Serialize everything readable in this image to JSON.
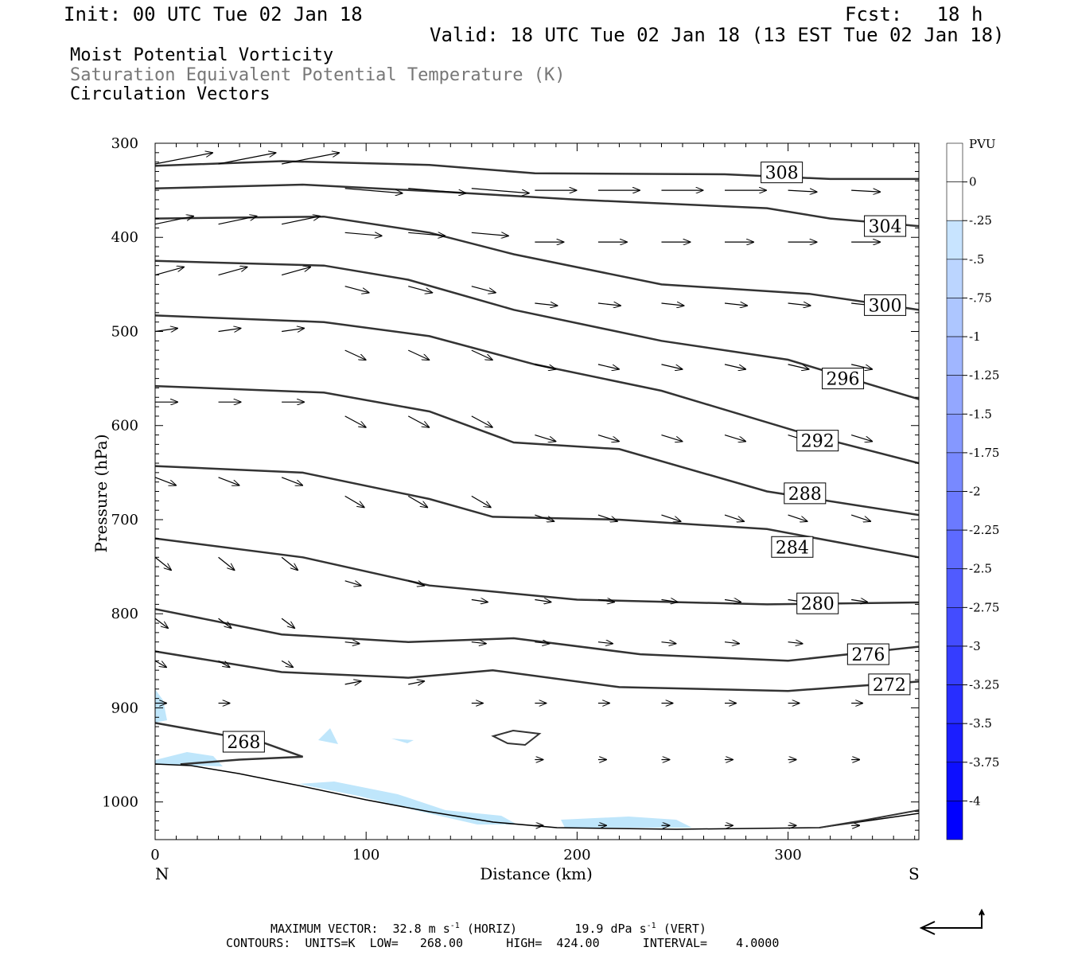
{
  "header": {
    "init": "Init: 00 UTC Tue 02 Jan 18",
    "fcst_label": "Fcst:",
    "fcst_value": "18 h",
    "valid": "Valid: 18 UTC Tue 02 Jan 18 (13 EST Tue 02 Jan 18)",
    "fields": [
      "Moist Potential Vorticity",
      "Saturation Equivalent Potential Temperature (K)",
      "Circulation Vectors"
    ]
  },
  "footer": {
    "max_vector_label": "MAXIMUM VECTOR:",
    "horiz": "32.8 m s",
    "horiz_tail": "(HORIZ)",
    "vert": "19.9 dPa s",
    "vert_tail": "(VERT)",
    "exp": "-1",
    "contours": "CONTOURS:  UNITS=K  LOW=   268.00      HIGH=  424.00      INTERVAL=    4.0000"
  },
  "colors": {
    "contour": "#333333",
    "pv_shading": "#bfe6fb",
    "axis": "#000000"
  },
  "chart_data": {
    "type": "contour",
    "xlabel": "Distance (km)",
    "ylabel": "Pressure (hPa)",
    "x_ticks": [
      0,
      100,
      200,
      300
    ],
    "y_ticks": [
      300,
      400,
      500,
      600,
      700,
      800,
      900,
      1000
    ],
    "xlim": [
      0,
      362
    ],
    "ylim": [
      300,
      1040
    ],
    "y_reversed": true,
    "end_labels": {
      "left": "N",
      "right": "S"
    },
    "contour_levels": [
      {
        "level": 308,
        "points": [
          [
            0,
            324
          ],
          [
            60,
            319
          ],
          [
            130,
            323
          ],
          [
            180,
            332
          ],
          [
            270,
            333
          ],
          [
            320,
            338
          ],
          [
            362,
            338
          ]
        ],
        "label_at": [
          297,
          331
        ]
      },
      {
        "level": 304,
        "points": [
          [
            0,
            348
          ],
          [
            70,
            344
          ],
          [
            140,
            352
          ],
          [
            200,
            360
          ],
          [
            290,
            369
          ],
          [
            320,
            380
          ],
          [
            362,
            388
          ]
        ],
        "label_at": [
          346,
          388
        ]
      },
      {
        "level": 300,
        "points": [
          [
            0,
            380
          ],
          [
            80,
            378
          ],
          [
            130,
            395
          ],
          [
            170,
            418
          ],
          [
            240,
            450
          ],
          [
            310,
            460
          ],
          [
            362,
            477
          ]
        ],
        "label_at": [
          346,
          472
        ]
      },
      {
        "level": 296,
        "points": [
          [
            0,
            425
          ],
          [
            80,
            430
          ],
          [
            120,
            445
          ],
          [
            170,
            477
          ],
          [
            240,
            510
          ],
          [
            300,
            530
          ],
          [
            362,
            572
          ]
        ],
        "label_at": [
          326,
          550
        ]
      },
      {
        "level": 292,
        "points": [
          [
            0,
            483
          ],
          [
            80,
            490
          ],
          [
            130,
            505
          ],
          [
            180,
            535
          ],
          [
            240,
            563
          ],
          [
            310,
            610
          ],
          [
            362,
            640
          ]
        ],
        "label_at": [
          314,
          616
        ]
      },
      {
        "level": 288,
        "points": [
          [
            0,
            558
          ],
          [
            80,
            565
          ],
          [
            130,
            585
          ],
          [
            170,
            618
          ],
          [
            220,
            625
          ],
          [
            290,
            670
          ],
          [
            362,
            695
          ]
        ],
        "label_at": [
          308,
          672
        ]
      },
      {
        "level": 284,
        "points": [
          [
            0,
            643
          ],
          [
            70,
            650
          ],
          [
            130,
            678
          ],
          [
            160,
            697
          ],
          [
            220,
            700
          ],
          [
            290,
            710
          ],
          [
            362,
            740
          ]
        ],
        "label_at": [
          302,
          729
        ]
      },
      {
        "level": 280,
        "points": [
          [
            0,
            720
          ],
          [
            70,
            740
          ],
          [
            130,
            770
          ],
          [
            200,
            785
          ],
          [
            290,
            790
          ],
          [
            362,
            788
          ]
        ],
        "label_at": [
          314,
          789
        ]
      },
      {
        "level": 276,
        "points": [
          [
            0,
            795
          ],
          [
            60,
            822
          ],
          [
            120,
            830
          ],
          [
            170,
            826
          ],
          [
            230,
            843
          ],
          [
            300,
            850
          ],
          [
            362,
            835
          ]
        ],
        "label_at": [
          338,
          843
        ]
      },
      {
        "level": 272,
        "points": [
          [
            0,
            840
          ],
          [
            60,
            862
          ],
          [
            120,
            868
          ],
          [
            160,
            860
          ],
          [
            220,
            878
          ],
          [
            300,
            882
          ],
          [
            362,
            872
          ]
        ],
        "label_at": [
          348,
          875
        ]
      },
      {
        "level": 268,
        "points": [
          [
            0,
            916
          ],
          [
            50,
            936
          ],
          [
            70,
            952
          ],
          [
            40,
            955
          ],
          [
            12,
            960
          ]
        ],
        "label_at": [
          42,
          936
        ]
      }
    ],
    "pv_shading_levels": [
      0,
      -0.25,
      -0.5,
      -0.75,
      -1,
      -1.25,
      -1.5,
      -1.75,
      -2,
      -2.25,
      -2.5,
      -2.75,
      -3,
      -3.25,
      -3.5,
      -3.75,
      -4
    ],
    "colorbar_unit": "PVU",
    "colorbar_labels": [
      "0",
      "-.25",
      "-.5",
      "-.75",
      "-1",
      "-1.25",
      "-1.5",
      "-1.75",
      "-2",
      "-2.25",
      "-2.5",
      "-2.75",
      "-3",
      "-3.25",
      "-3.5",
      "-3.75",
      "-4"
    ]
  }
}
